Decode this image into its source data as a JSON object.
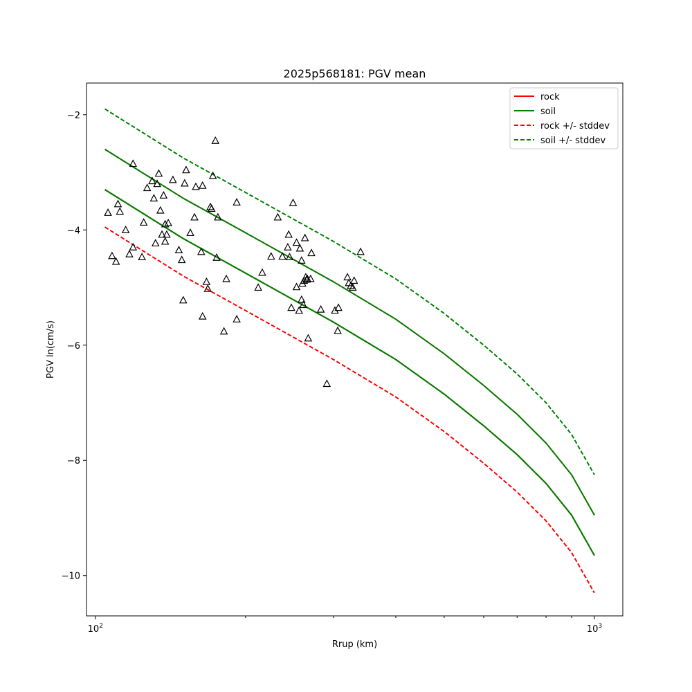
{
  "chart_data": {
    "type": "scatter",
    "title": "2025p568181: PGV mean",
    "xlabel": "Rrup (km)",
    "ylabel": "PGV ln(cm/s)",
    "xscale": "log",
    "xlim": [
      96,
      1140
    ],
    "ylim": [
      -10.7,
      -1.45
    ],
    "x_ticks": [
      {
        "value": 100,
        "base": "10",
        "exp": "2"
      },
      {
        "value": 1000,
        "base": "10",
        "exp": "3"
      }
    ],
    "y_ticks": [
      {
        "value": -2,
        "label": "−2"
      },
      {
        "value": -4,
        "label": "−4"
      },
      {
        "value": -6,
        "label": "−6"
      },
      {
        "value": -8,
        "label": "−8"
      },
      {
        "value": -10,
        "label": "−10"
      }
    ],
    "legend": {
      "placement": "top-right",
      "entries": [
        {
          "label": "rock",
          "color": "#ff0000",
          "style": "solid"
        },
        {
          "label": "soil",
          "color": "#008000",
          "style": "solid"
        },
        {
          "label": "rock +/- stddev",
          "color": "#ff0000",
          "style": "dashed"
        },
        {
          "label": "soil +/- stddev",
          "color": "#008000",
          "style": "dashed"
        }
      ]
    },
    "series": [
      {
        "kind": "rock-mean",
        "color": "#ff0000",
        "style": "solid",
        "x": [
          104.5,
          150,
          200,
          300,
          400,
          500,
          600,
          700,
          800,
          900,
          1000
        ],
        "y": [
          -3.3,
          -4.15,
          -4.75,
          -5.6,
          -6.25,
          -6.85,
          -7.4,
          -7.9,
          -8.4,
          -8.95,
          -9.65
        ]
      },
      {
        "kind": "rock-plus-stddev",
        "color": "#ff0000",
        "style": "dashed",
        "x": [
          104.5,
          150,
          200,
          300,
          400,
          500,
          600,
          700,
          800,
          900,
          1000
        ],
        "y": [
          -2.6,
          -3.45,
          -4.05,
          -4.9,
          -5.55,
          -6.15,
          -6.7,
          -7.2,
          -7.7,
          -8.25,
          -8.95
        ]
      },
      {
        "kind": "rock-minus-stddev",
        "color": "#ff0000",
        "style": "dashed",
        "x": [
          104.5,
          150,
          200,
          300,
          400,
          500,
          600,
          700,
          800,
          900,
          1000
        ],
        "y": [
          -3.95,
          -4.8,
          -5.4,
          -6.25,
          -6.9,
          -7.5,
          -8.05,
          -8.55,
          -9.05,
          -9.6,
          -10.3
        ]
      },
      {
        "kind": "soil-mean",
        "color": "#008000",
        "style": "solid",
        "x": [
          104.5,
          150,
          200,
          300,
          400,
          500,
          600,
          700,
          800,
          900,
          1000
        ],
        "y": [
          -3.3,
          -4.15,
          -4.75,
          -5.6,
          -6.25,
          -6.85,
          -7.4,
          -7.9,
          -8.4,
          -8.95,
          -9.65
        ]
      },
      {
        "kind": "soil-plus-stddev",
        "color": "#008000",
        "style": "dashed",
        "x": [
          104.5,
          150,
          200,
          300,
          400,
          500,
          600,
          700,
          800,
          900,
          1000
        ],
        "y": [
          -1.9,
          -2.75,
          -3.35,
          -4.2,
          -4.85,
          -5.45,
          -6.0,
          -6.5,
          -7.0,
          -7.55,
          -8.25
        ]
      },
      {
        "kind": "soil-minus-stddev",
        "color": "#008000",
        "style": "dashed",
        "x": [
          104.5,
          150,
          200,
          300,
          400,
          500,
          600,
          700,
          800,
          900,
          1000
        ],
        "y": [
          -3.3,
          -4.15,
          -4.75,
          -5.6,
          -6.25,
          -6.85,
          -7.4,
          -7.9,
          -8.4,
          -8.95,
          -9.65
        ]
      },
      {
        "kind": "soil-mean-upper",
        "color": "#008000",
        "style": "solid",
        "x": [
          104.5,
          150,
          200,
          300,
          400,
          500,
          600,
          700,
          800,
          900,
          1000
        ],
        "y": [
          -2.6,
          -3.45,
          -4.05,
          -4.9,
          -5.55,
          -6.15,
          -6.7,
          -7.2,
          -7.7,
          -8.25,
          -8.95
        ]
      }
    ],
    "observations": {
      "marker": "triangle",
      "x": [
        106,
        108,
        110,
        111,
        112,
        115,
        117,
        119,
        119,
        124,
        125,
        127,
        130,
        131,
        132,
        133,
        134,
        135,
        136,
        137,
        138,
        138,
        139,
        140,
        143,
        147,
        149,
        150,
        151,
        152,
        155,
        158,
        159,
        163,
        164,
        164,
        167,
        168,
        170,
        171,
        172,
        174,
        175,
        176,
        181,
        183,
        192,
        192,
        212,
        216,
        225,
        232,
        237,
        243,
        244,
        245,
        247,
        249,
        253,
        253,
        256,
        257,
        259,
        259,
        260,
        261,
        262,
        263,
        264,
        265,
        266,
        267,
        270,
        271,
        283,
        291,
        302,
        306,
        307,
        320,
        322,
        325,
        328,
        330,
        340
      ],
      "y": [
        -3.7,
        -4.45,
        -4.55,
        -3.55,
        -3.68,
        -4.0,
        -4.42,
        -4.3,
        -2.85,
        -4.47,
        -3.87,
        -3.27,
        -3.15,
        -3.45,
        -4.23,
        -3.2,
        -3.02,
        -3.66,
        -4.08,
        -3.4,
        -3.9,
        -4.2,
        -4.08,
        -3.88,
        -3.13,
        -4.35,
        -4.52,
        -5.22,
        -3.19,
        -2.96,
        -4.05,
        -3.78,
        -3.25,
        -4.38,
        -3.23,
        -5.5,
        -4.9,
        -5.02,
        -3.6,
        -3.63,
        -3.06,
        -2.45,
        -4.48,
        -3.78,
        -5.76,
        -4.85,
        -3.52,
        -5.55,
        -5.0,
        -4.74,
        -4.46,
        -3.78,
        -4.46,
        -4.3,
        -4.08,
        -4.47,
        -5.35,
        -3.53,
        -4.22,
        -4.99,
        -5.4,
        -4.32,
        -5.21,
        -4.53,
        -4.93,
        -5.3,
        -4.88,
        -4.14,
        -4.82,
        -4.86,
        -4.85,
        -5.88,
        -4.85,
        -4.4,
        -5.38,
        -6.67,
        -5.4,
        -5.75,
        -5.35,
        -4.82,
        -4.92,
        -4.97,
        -5.0,
        -4.88,
        -4.38
      ]
    }
  }
}
